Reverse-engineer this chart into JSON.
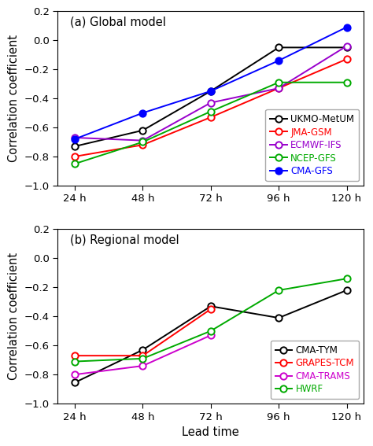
{
  "x_labels": [
    "24 h",
    "48 h",
    "72 h",
    "96 h",
    "120 h"
  ],
  "x_vals": [
    24,
    48,
    72,
    96,
    120
  ],
  "global": {
    "title": "(a) Global model",
    "series": [
      {
        "label": "UKMO-MetUM",
        "color": "#000000",
        "filled": false,
        "values": [
          -0.73,
          -0.62,
          -0.35,
          -0.05,
          -0.05
        ]
      },
      {
        "label": "JMA-GSM",
        "color": "#ff0000",
        "filled": false,
        "values": [
          -0.8,
          -0.72,
          -0.53,
          -0.33,
          -0.13
        ]
      },
      {
        "label": "ECMWF-IFS",
        "color": "#9900cc",
        "filled": false,
        "values": [
          -0.67,
          -0.69,
          -0.43,
          -0.33,
          -0.04
        ]
      },
      {
        "label": "NCEP-GFS",
        "color": "#00aa00",
        "filled": false,
        "values": [
          -0.85,
          -0.7,
          -0.49,
          -0.29,
          -0.29
        ]
      },
      {
        "label": "CMA-GFS",
        "color": "#0000ff",
        "filled": true,
        "values": [
          -0.68,
          -0.5,
          -0.35,
          -0.14,
          0.09
        ]
      }
    ],
    "ylim": [
      -1.0,
      0.2
    ],
    "yticks": [
      -1.0,
      -0.8,
      -0.6,
      -0.4,
      -0.2,
      0.0,
      0.2
    ]
  },
  "regional": {
    "title": "(b) Regional model",
    "series": [
      {
        "label": "CMA-TYM",
        "color": "#000000",
        "filled": false,
        "values": [
          -0.855,
          -0.63,
          -0.33,
          -0.41,
          -0.22
        ]
      },
      {
        "label": "GRAPES-TCM",
        "color": "#ff0000",
        "filled": false,
        "values": [
          -0.67,
          -0.67,
          -0.35,
          null,
          null
        ]
      },
      {
        "label": "CMA-TRAMS",
        "color": "#cc00cc",
        "filled": false,
        "values": [
          -0.8,
          -0.74,
          -0.53,
          null,
          null
        ]
      },
      {
        "label": "HWRF",
        "color": "#00aa00",
        "filled": false,
        "values": [
          -0.71,
          -0.69,
          -0.5,
          -0.22,
          -0.14
        ]
      }
    ],
    "ylim": [
      -1.0,
      0.2
    ],
    "yticks": [
      -1.0,
      -0.8,
      -0.6,
      -0.4,
      -0.2,
      0.0,
      0.2
    ]
  },
  "ylabel": "Correlation coefficient",
  "xlabel": "Lead time",
  "legend_fontsize": 8.5,
  "tick_fontsize": 9.5,
  "label_fontsize": 10.5,
  "title_fontsize": 10.5
}
